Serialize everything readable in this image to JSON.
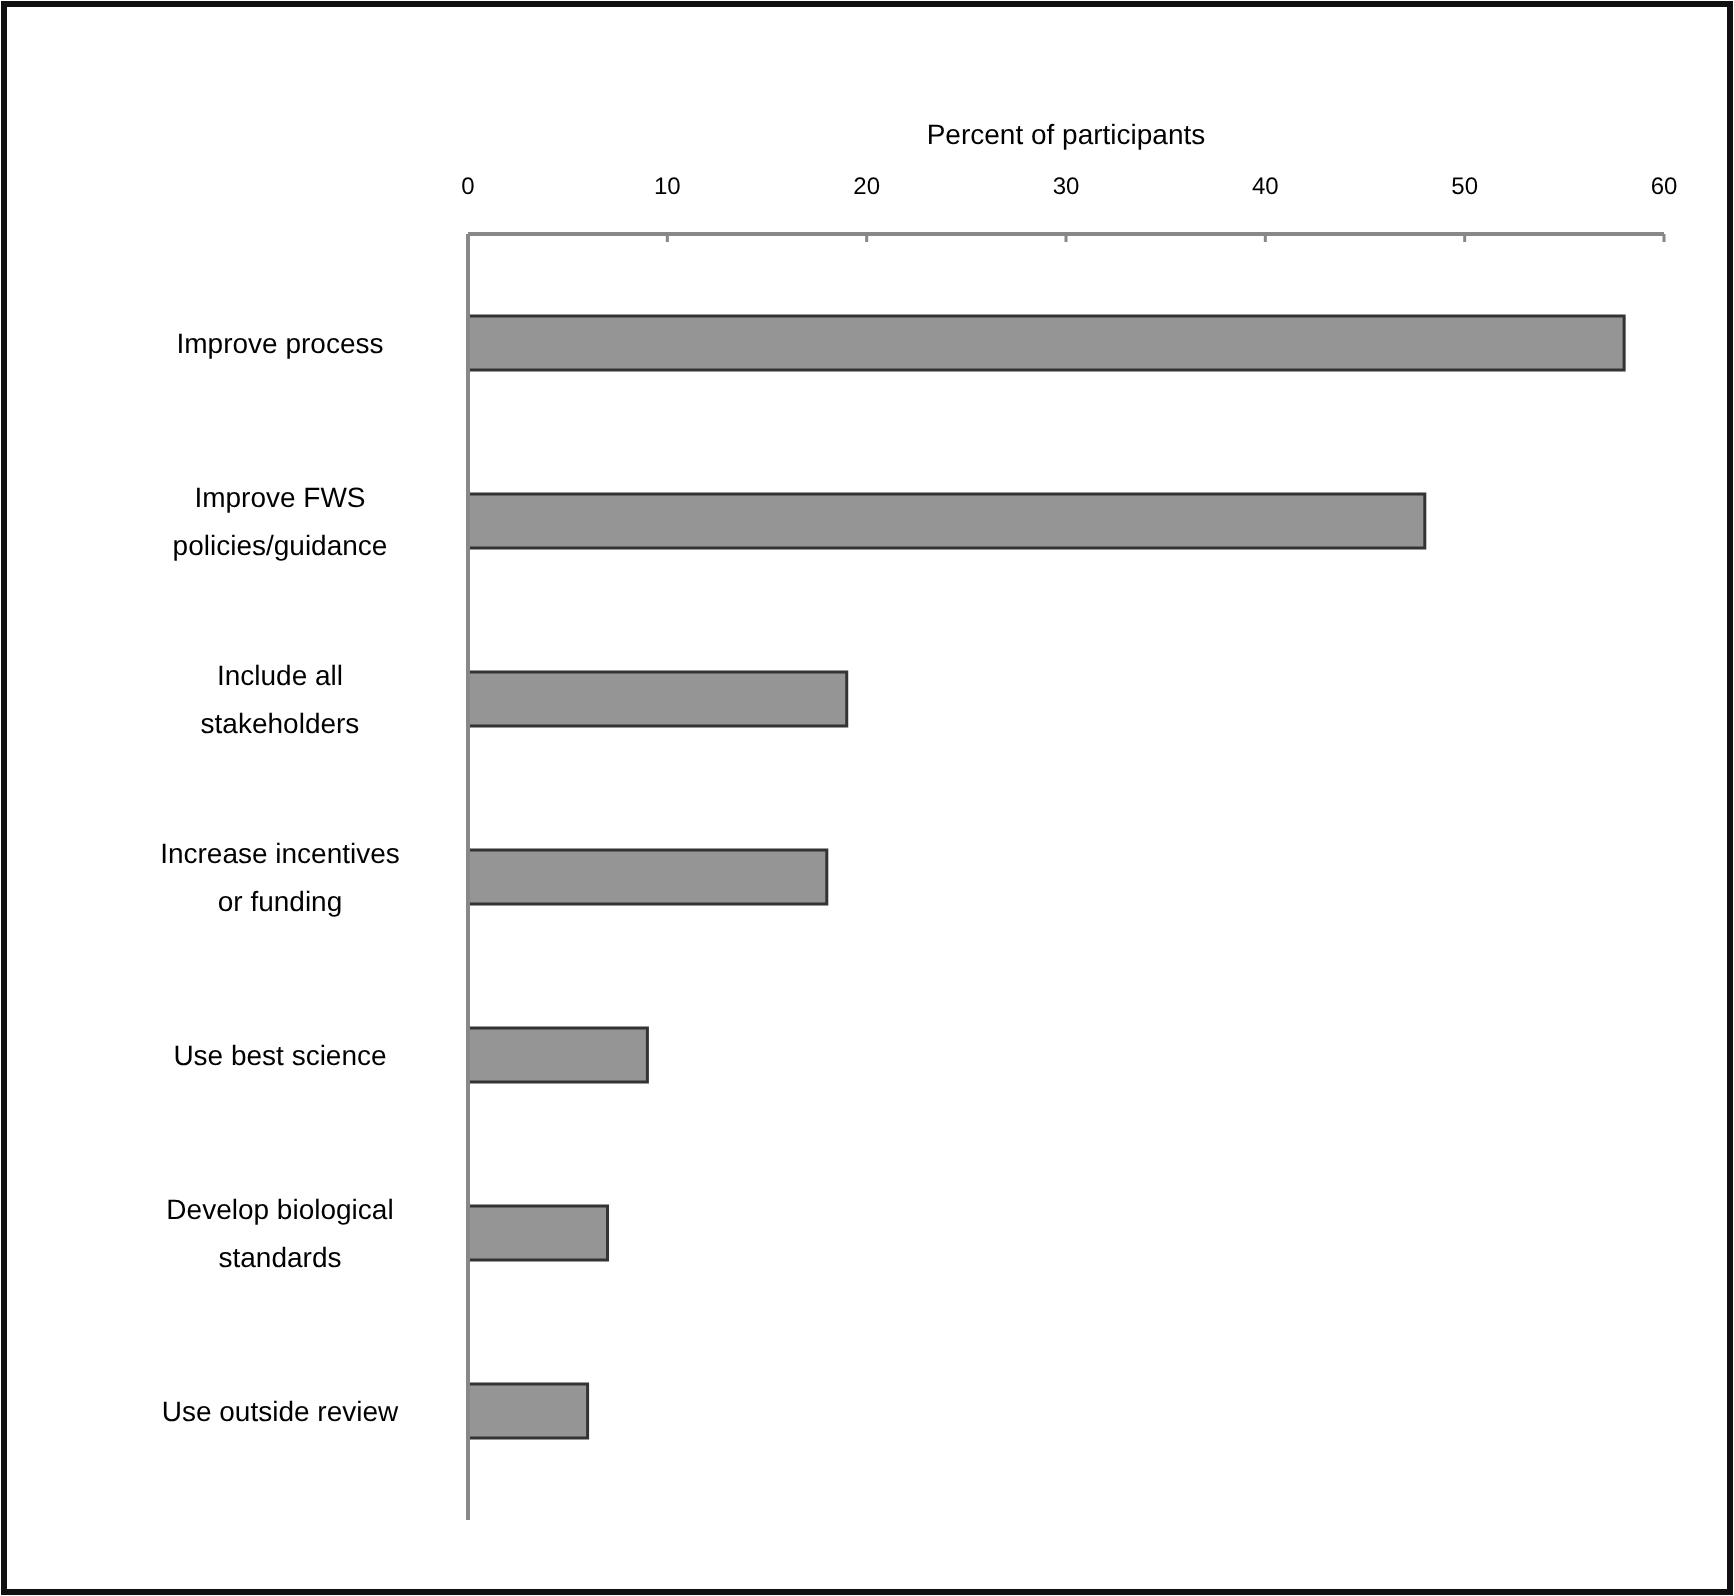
{
  "chart_data": {
    "type": "bar",
    "orientation": "horizontal",
    "xlabel": "Percent of participants",
    "categories": [
      "Improve process",
      "Improve FWS policies/guidance",
      "Include all stakeholders",
      "Increase incentives or funding",
      "Use best science",
      "Develop biological standards",
      "Use outside review"
    ],
    "values": [
      58,
      48,
      19,
      18,
      9,
      7,
      6
    ],
    "color": "#959595",
    "xlim": [
      0,
      60
    ],
    "xticks": [
      0,
      10,
      20,
      30,
      40,
      50,
      60
    ],
    "grid": false
  }
}
